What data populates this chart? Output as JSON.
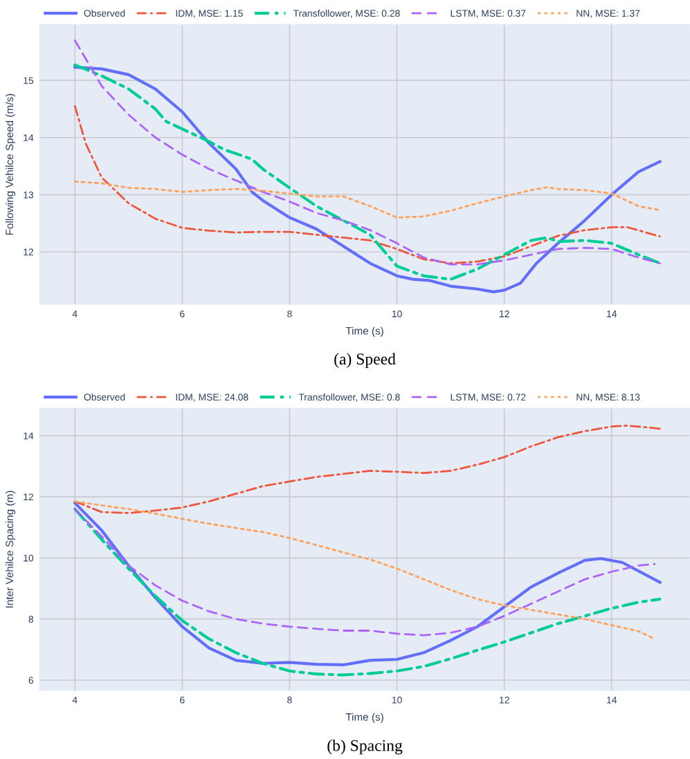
{
  "chart_data": [
    {
      "type": "line",
      "xlabel": "Time (s)",
      "ylabel": "Following Vehilce Speed (m/s)",
      "annotations": [
        "(a) Speed"
      ],
      "xlim": [
        3.34,
        15.46
      ],
      "ylim": [
        11.08,
        15.98
      ],
      "xticks": [
        4,
        6,
        8,
        10,
        12,
        14
      ],
      "yticks": [
        12,
        13,
        14,
        15
      ],
      "grid": true,
      "legend": "top",
      "series": [
        {
          "name": "Observed",
          "color": "#636efa",
          "line_style": "solid",
          "x": [
            4,
            4.5,
            5,
            5.5,
            6,
            6.5,
            7,
            7.3,
            7.5,
            8,
            8.5,
            9,
            9.5,
            10,
            10.3,
            10.6,
            11,
            11.5,
            11.8,
            12,
            12.3,
            12.6,
            13,
            13.5,
            14,
            14.5,
            14.9
          ],
          "values": [
            15.23,
            15.2,
            15.1,
            14.85,
            14.45,
            13.9,
            13.45,
            13.05,
            12.9,
            12.6,
            12.4,
            12.1,
            11.8,
            11.58,
            11.52,
            11.5,
            11.4,
            11.35,
            11.3,
            11.33,
            11.45,
            11.8,
            12.15,
            12.55,
            13.0,
            13.4,
            13.58
          ]
        },
        {
          "name": "IDM, MSE: 1.15",
          "color": "#ef553b",
          "line_style": "dashdot",
          "x": [
            4,
            4.2,
            4.5,
            5,
            5.5,
            6,
            6.5,
            7,
            7.5,
            8,
            8.5,
            9,
            9.5,
            10,
            10.5,
            11,
            11.5,
            12,
            12.5,
            13,
            13.5,
            14,
            14.3,
            14.9
          ],
          "values": [
            14.55,
            13.9,
            13.3,
            12.85,
            12.58,
            12.42,
            12.37,
            12.34,
            12.35,
            12.35,
            12.3,
            12.25,
            12.2,
            12.05,
            11.87,
            11.8,
            11.83,
            11.92,
            12.1,
            12.28,
            12.38,
            12.43,
            12.43,
            12.27
          ]
        },
        {
          "name": "Transfollower, MSE: 0.28",
          "color": "#00cc96",
          "line_style": "dashdot",
          "x": [
            4,
            4.5,
            5,
            5.5,
            5.7,
            6,
            6.5,
            6.8,
            7,
            7.3,
            7.5,
            8,
            8.5,
            9,
            9.5,
            10,
            10.5,
            11,
            11.5,
            12,
            12.5,
            12.8,
            13,
            13.5,
            14,
            14.5,
            14.9
          ],
          "values": [
            15.27,
            15.08,
            14.85,
            14.5,
            14.28,
            14.15,
            13.93,
            13.78,
            13.72,
            13.62,
            13.45,
            13.12,
            12.8,
            12.55,
            12.3,
            11.75,
            11.58,
            11.52,
            11.7,
            11.95,
            12.2,
            12.25,
            12.18,
            12.2,
            12.15,
            11.95,
            11.8
          ]
        },
        {
          "name": "LSTM, MSE: 0.37",
          "color": "#ab63fa",
          "line_style": "dashed",
          "x": [
            4,
            4.5,
            5,
            5.5,
            6,
            6.5,
            7,
            7.5,
            8,
            8.5,
            9,
            9.5,
            10,
            10.5,
            11,
            11.5,
            12,
            12.5,
            13,
            13.5,
            14,
            14.5,
            14.9
          ],
          "values": [
            15.7,
            14.9,
            14.4,
            14.0,
            13.7,
            13.45,
            13.25,
            13.05,
            12.88,
            12.68,
            12.55,
            12.38,
            12.15,
            11.9,
            11.78,
            11.78,
            11.85,
            11.95,
            12.05,
            12.07,
            12.05,
            11.9,
            11.8
          ]
        },
        {
          "name": "NN, MSE: 1.37",
          "color": "#ffa15a",
          "line_style": "dotted",
          "x": [
            4,
            4.5,
            5,
            5.5,
            6,
            6.5,
            7,
            7.5,
            8,
            8.5,
            9,
            9.5,
            10,
            10.5,
            11,
            11.5,
            12,
            12.5,
            12.8,
            13,
            13.5,
            14,
            14.5,
            14.9
          ],
          "values": [
            13.23,
            13.2,
            13.12,
            13.1,
            13.05,
            13.08,
            13.1,
            13.07,
            13.02,
            12.97,
            12.97,
            12.8,
            12.6,
            12.62,
            12.72,
            12.85,
            12.97,
            13.08,
            13.13,
            13.1,
            13.08,
            13.02,
            12.8,
            12.73
          ]
        }
      ]
    },
    {
      "type": "line",
      "xlabel": "Time (s)",
      "ylabel": "Inter Vehilce Spacing (m)",
      "annotations": [
        "(b) Spacing"
      ],
      "xlim": [
        3.34,
        15.46
      ],
      "ylim": [
        5.66,
        14.9
      ],
      "xticks": [
        4,
        6,
        8,
        10,
        12,
        14
      ],
      "yticks": [
        6,
        8,
        10,
        12,
        14
      ],
      "grid": true,
      "legend": "top",
      "series": [
        {
          "name": "Observed",
          "color": "#636efa",
          "line_style": "solid",
          "x": [
            4,
            4.5,
            5,
            5.5,
            6,
            6.5,
            7,
            7.5,
            8,
            8.5,
            9,
            9.5,
            10,
            10.5,
            11,
            11.5,
            12,
            12.5,
            13,
            13.5,
            13.8,
            14.2,
            14.9
          ],
          "values": [
            11.8,
            10.9,
            9.75,
            8.7,
            7.75,
            7.05,
            6.65,
            6.55,
            6.58,
            6.52,
            6.5,
            6.65,
            6.68,
            6.9,
            7.3,
            7.75,
            8.4,
            9.05,
            9.5,
            9.92,
            9.98,
            9.85,
            9.2
          ]
        },
        {
          "name": "IDM, MSE: 24.08",
          "color": "#ef553b",
          "line_style": "dashdot",
          "x": [
            4,
            4.5,
            5,
            5.5,
            6,
            6.5,
            7,
            7.5,
            8,
            8.5,
            9,
            9.5,
            10,
            10.5,
            11,
            11.5,
            12,
            12.5,
            13,
            13.5,
            14,
            14.3,
            14.9
          ],
          "values": [
            11.85,
            11.5,
            11.47,
            11.55,
            11.65,
            11.85,
            12.1,
            12.35,
            12.5,
            12.65,
            12.75,
            12.85,
            12.82,
            12.78,
            12.85,
            13.05,
            13.3,
            13.65,
            13.95,
            14.15,
            14.3,
            14.33,
            14.23
          ]
        },
        {
          "name": "Transfollower, MSE: 0.8",
          "color": "#00cc96",
          "line_style": "dashdot",
          "x": [
            4,
            4.5,
            5,
            5.5,
            6,
            6.5,
            7,
            7.5,
            8,
            8.5,
            9,
            9.5,
            10,
            10.5,
            11,
            11.5,
            12,
            12.5,
            13,
            13.5,
            14,
            14.5,
            14.9
          ],
          "values": [
            11.6,
            10.6,
            9.65,
            8.75,
            7.95,
            7.35,
            6.9,
            6.55,
            6.3,
            6.2,
            6.17,
            6.22,
            6.3,
            6.45,
            6.7,
            6.98,
            7.25,
            7.55,
            7.85,
            8.1,
            8.35,
            8.55,
            8.65
          ]
        },
        {
          "name": "LSTM, MSE: 0.72",
          "color": "#ab63fa",
          "line_style": "dashed",
          "x": [
            4,
            4.5,
            5,
            5.5,
            6,
            6.5,
            7,
            7.5,
            8,
            8.5,
            9,
            9.5,
            10,
            10.5,
            11,
            11.5,
            12,
            12.5,
            13,
            13.5,
            14,
            14.5,
            14.8
          ],
          "values": [
            11.6,
            10.7,
            9.75,
            9.1,
            8.6,
            8.25,
            8.0,
            7.85,
            7.75,
            7.68,
            7.62,
            7.62,
            7.52,
            7.47,
            7.55,
            7.75,
            8.1,
            8.5,
            8.9,
            9.3,
            9.55,
            9.75,
            9.8
          ]
        },
        {
          "name": "NN, MSE: 8.13",
          "color": "#ffa15a",
          "line_style": "dotted",
          "x": [
            4,
            4.5,
            5,
            5.5,
            6,
            6.5,
            7,
            7.5,
            8,
            8.5,
            9,
            9.5,
            10,
            10.5,
            11,
            11.5,
            12,
            12.5,
            13,
            13.5,
            14,
            14.5,
            14.8
          ],
          "values": [
            11.85,
            11.72,
            11.6,
            11.45,
            11.28,
            11.12,
            10.98,
            10.85,
            10.65,
            10.42,
            10.18,
            9.95,
            9.65,
            9.3,
            8.95,
            8.65,
            8.45,
            8.3,
            8.15,
            8.0,
            7.8,
            7.6,
            7.35
          ]
        }
      ]
    }
  ]
}
